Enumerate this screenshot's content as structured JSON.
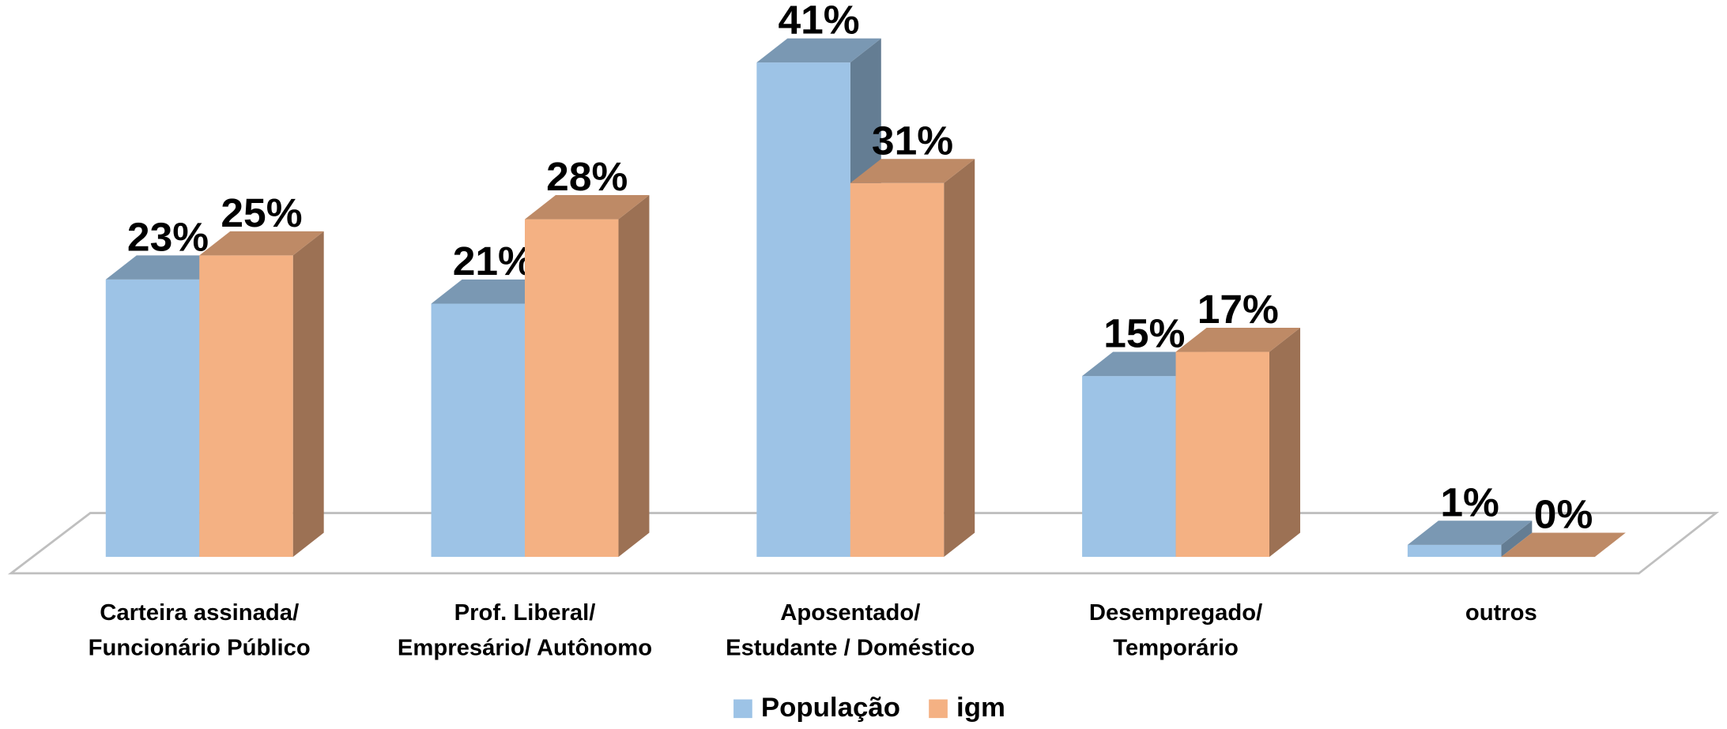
{
  "chart_data": {
    "type": "bar3d",
    "categories": [
      "Carteira assinada/\nFuncionário Público",
      "Prof. Liberal/\nEmpresário/ Autônomo",
      "Aposentado/\nEstudante / Doméstico",
      "Desempregado/\nTemporário",
      "outros"
    ],
    "series": [
      {
        "name": "População",
        "color": "#9dc3e6",
        "values": [
          23,
          21,
          41,
          15,
          1
        ],
        "value_labels": [
          "23%",
          "21%",
          "41%",
          "15%",
          "1%"
        ]
      },
      {
        "name": "igm",
        "color": "#f4b183",
        "values": [
          25,
          28,
          31,
          17,
          0
        ],
        "value_labels": [
          "25%",
          "28%",
          "31%",
          "17%",
          "0%"
        ]
      }
    ],
    "legend": "bottom"
  }
}
